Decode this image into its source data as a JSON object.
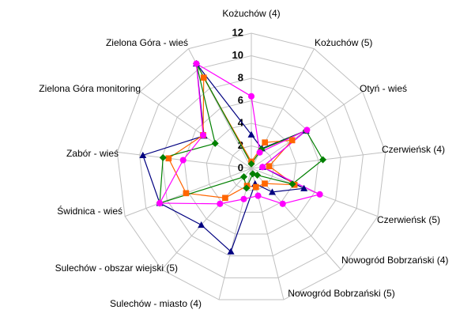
{
  "chart_data": {
    "type": "radar",
    "categories": [
      "Kożuchów  (4)",
      "Kożuchów (5)",
      "Otyń - wieś",
      "Czerwieńsk (4)",
      "Czerwieńsk (5)",
      "Nowogród Bobrzański (4)",
      "Nowogród Bobrzański (5)",
      "Sulechów - miasto (4)",
      "Sulechów - obszar wiejski (5)",
      "Świdnica - wieś",
      "Zabór - wieś",
      "Zielona Góra monitoring",
      "Zielona Góra - wieś"
    ],
    "ylim": [
      0,
      12
    ],
    "yticks": [
      0,
      2,
      4,
      6,
      8,
      10,
      12
    ],
    "grid": true,
    "series": [
      {
        "color": "#000080",
        "marker": "triangle",
        "values": [
          3.0,
          2.0,
          5.9,
          1.0,
          5.0,
          2.8,
          1.4,
          7.6,
          6.7,
          8.7,
          9.7,
          5.1,
          10.5
        ]
      },
      {
        "color": "#ff6600",
        "marker": "square",
        "values": [
          0.6,
          2.6,
          4.4,
          1.6,
          4.1,
          1.8,
          1.7,
          1.6,
          3.5,
          6.2,
          7.4,
          5.2,
          9.1
        ]
      },
      {
        "color": "#008000",
        "marker": "diamond",
        "values": [
          0.4,
          1.9,
          5.9,
          6.4,
          3.9,
          0.8,
          0.5,
          1.8,
          1.0,
          8.7,
          7.9,
          3.9,
          10.5
        ]
      },
      {
        "color": "#ff00ff",
        "marker": "circle",
        "values": [
          6.4,
          1.6,
          6.0,
          1.0,
          6.5,
          4.2,
          2.5,
          2.8,
          4.2,
          8.7,
          6.1,
          5.2,
          10.5
        ]
      }
    ]
  }
}
